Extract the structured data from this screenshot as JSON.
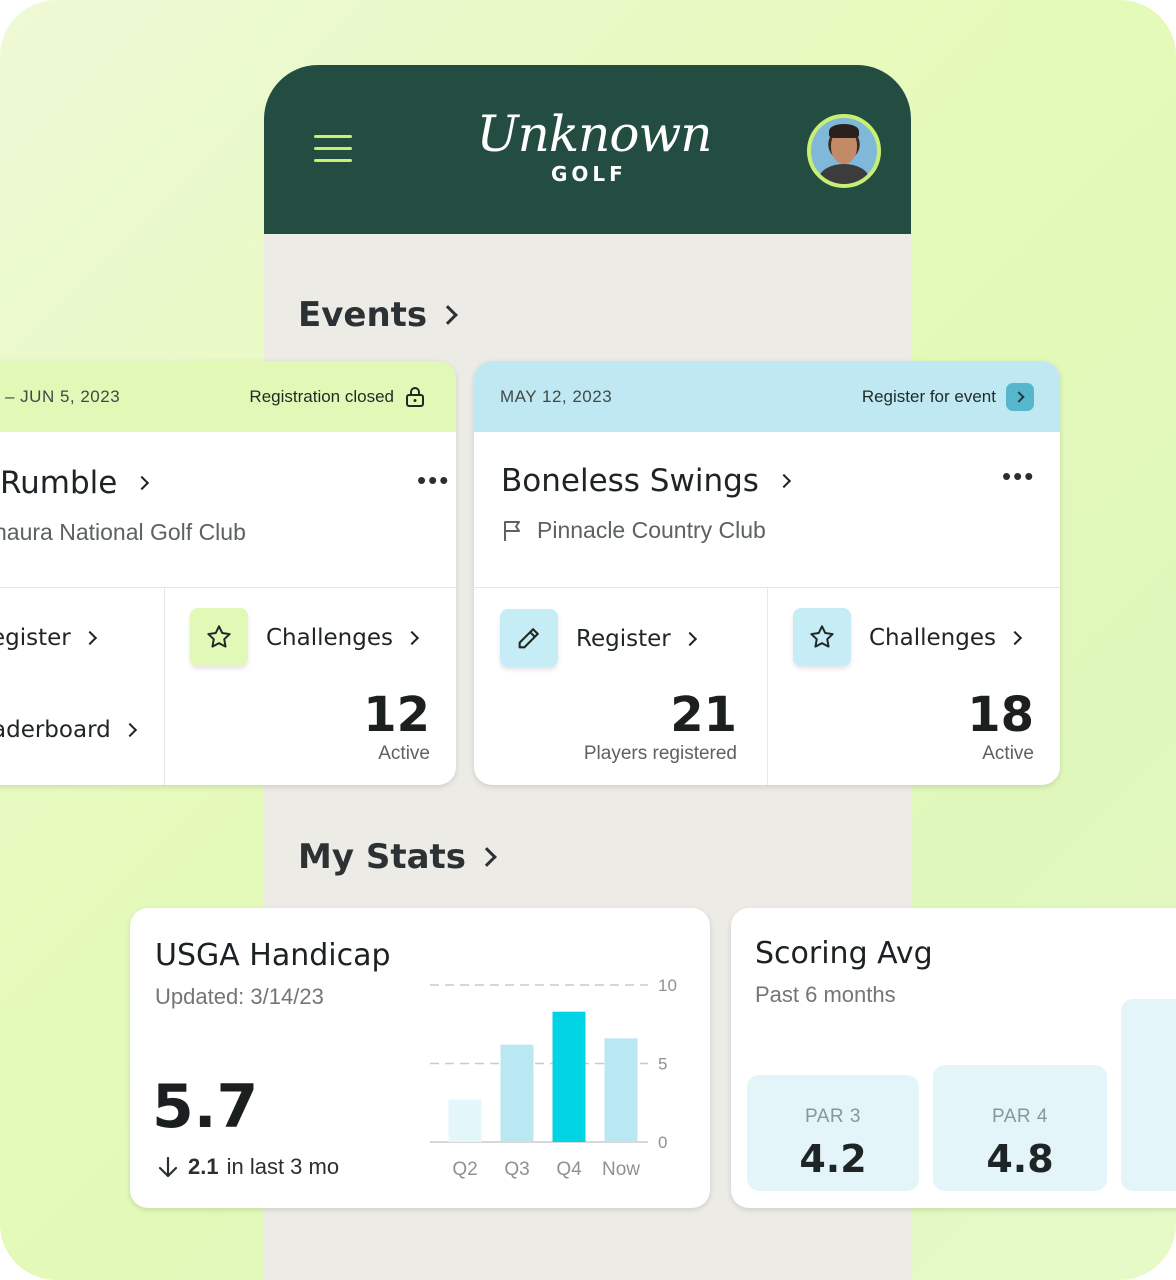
{
  "header": {
    "logo_script": "Unknown",
    "logo_word": "GOLF"
  },
  "events": {
    "title": "Events",
    "cards": [
      {
        "date": "– JUN 5, 2023",
        "status": "Registration closed",
        "name": "Rumble",
        "club": "naura National Golf Club",
        "register_label": "egister",
        "leaderboard_label": "aderboard",
        "challenges_label": "Challenges",
        "challenges_count": "12",
        "challenges_sub": "Active"
      },
      {
        "date": "MAY 12, 2023",
        "status": "Register for event",
        "name": "Boneless Swings",
        "club": "Pinnacle Country Club",
        "register_label": "Register",
        "register_count": "21",
        "register_sub": "Players registered",
        "challenges_label": "Challenges",
        "challenges_count": "18",
        "challenges_sub": "Active"
      }
    ]
  },
  "stats": {
    "title": "My Stats",
    "handicap": {
      "title": "USGA Handicap",
      "updated": "Updated: 3/14/23",
      "value": "5.7",
      "change_value": "2.1",
      "change_text": "in last 3 mo"
    },
    "scoring": {
      "title": "Scoring Avg",
      "subtitle": "Past 6 months",
      "boxes": [
        {
          "label": "PAR 3",
          "value": "4.2"
        },
        {
          "label": "PAR 4",
          "value": "4.8"
        }
      ]
    }
  },
  "chart_data": {
    "type": "bar",
    "categories": [
      "Q2",
      "Q3",
      "Q4",
      "Now"
    ],
    "values": [
      2.7,
      6.2,
      8.3,
      6.6
    ],
    "ylim": [
      0,
      10
    ],
    "yticks": [
      "10",
      "5",
      "0"
    ],
    "colors": [
      "#e3f6fa",
      "#b9e7f2",
      "#00d3e3",
      "#b9e7f2"
    ],
    "grid": true
  },
  "colors": {
    "header_bg": "#234d41",
    "accent_lime": "#c9f06d",
    "closed_banner": "#e2f8b6",
    "open_banner": "#bfe8f3",
    "highlight_bar": "#00d3e3"
  }
}
